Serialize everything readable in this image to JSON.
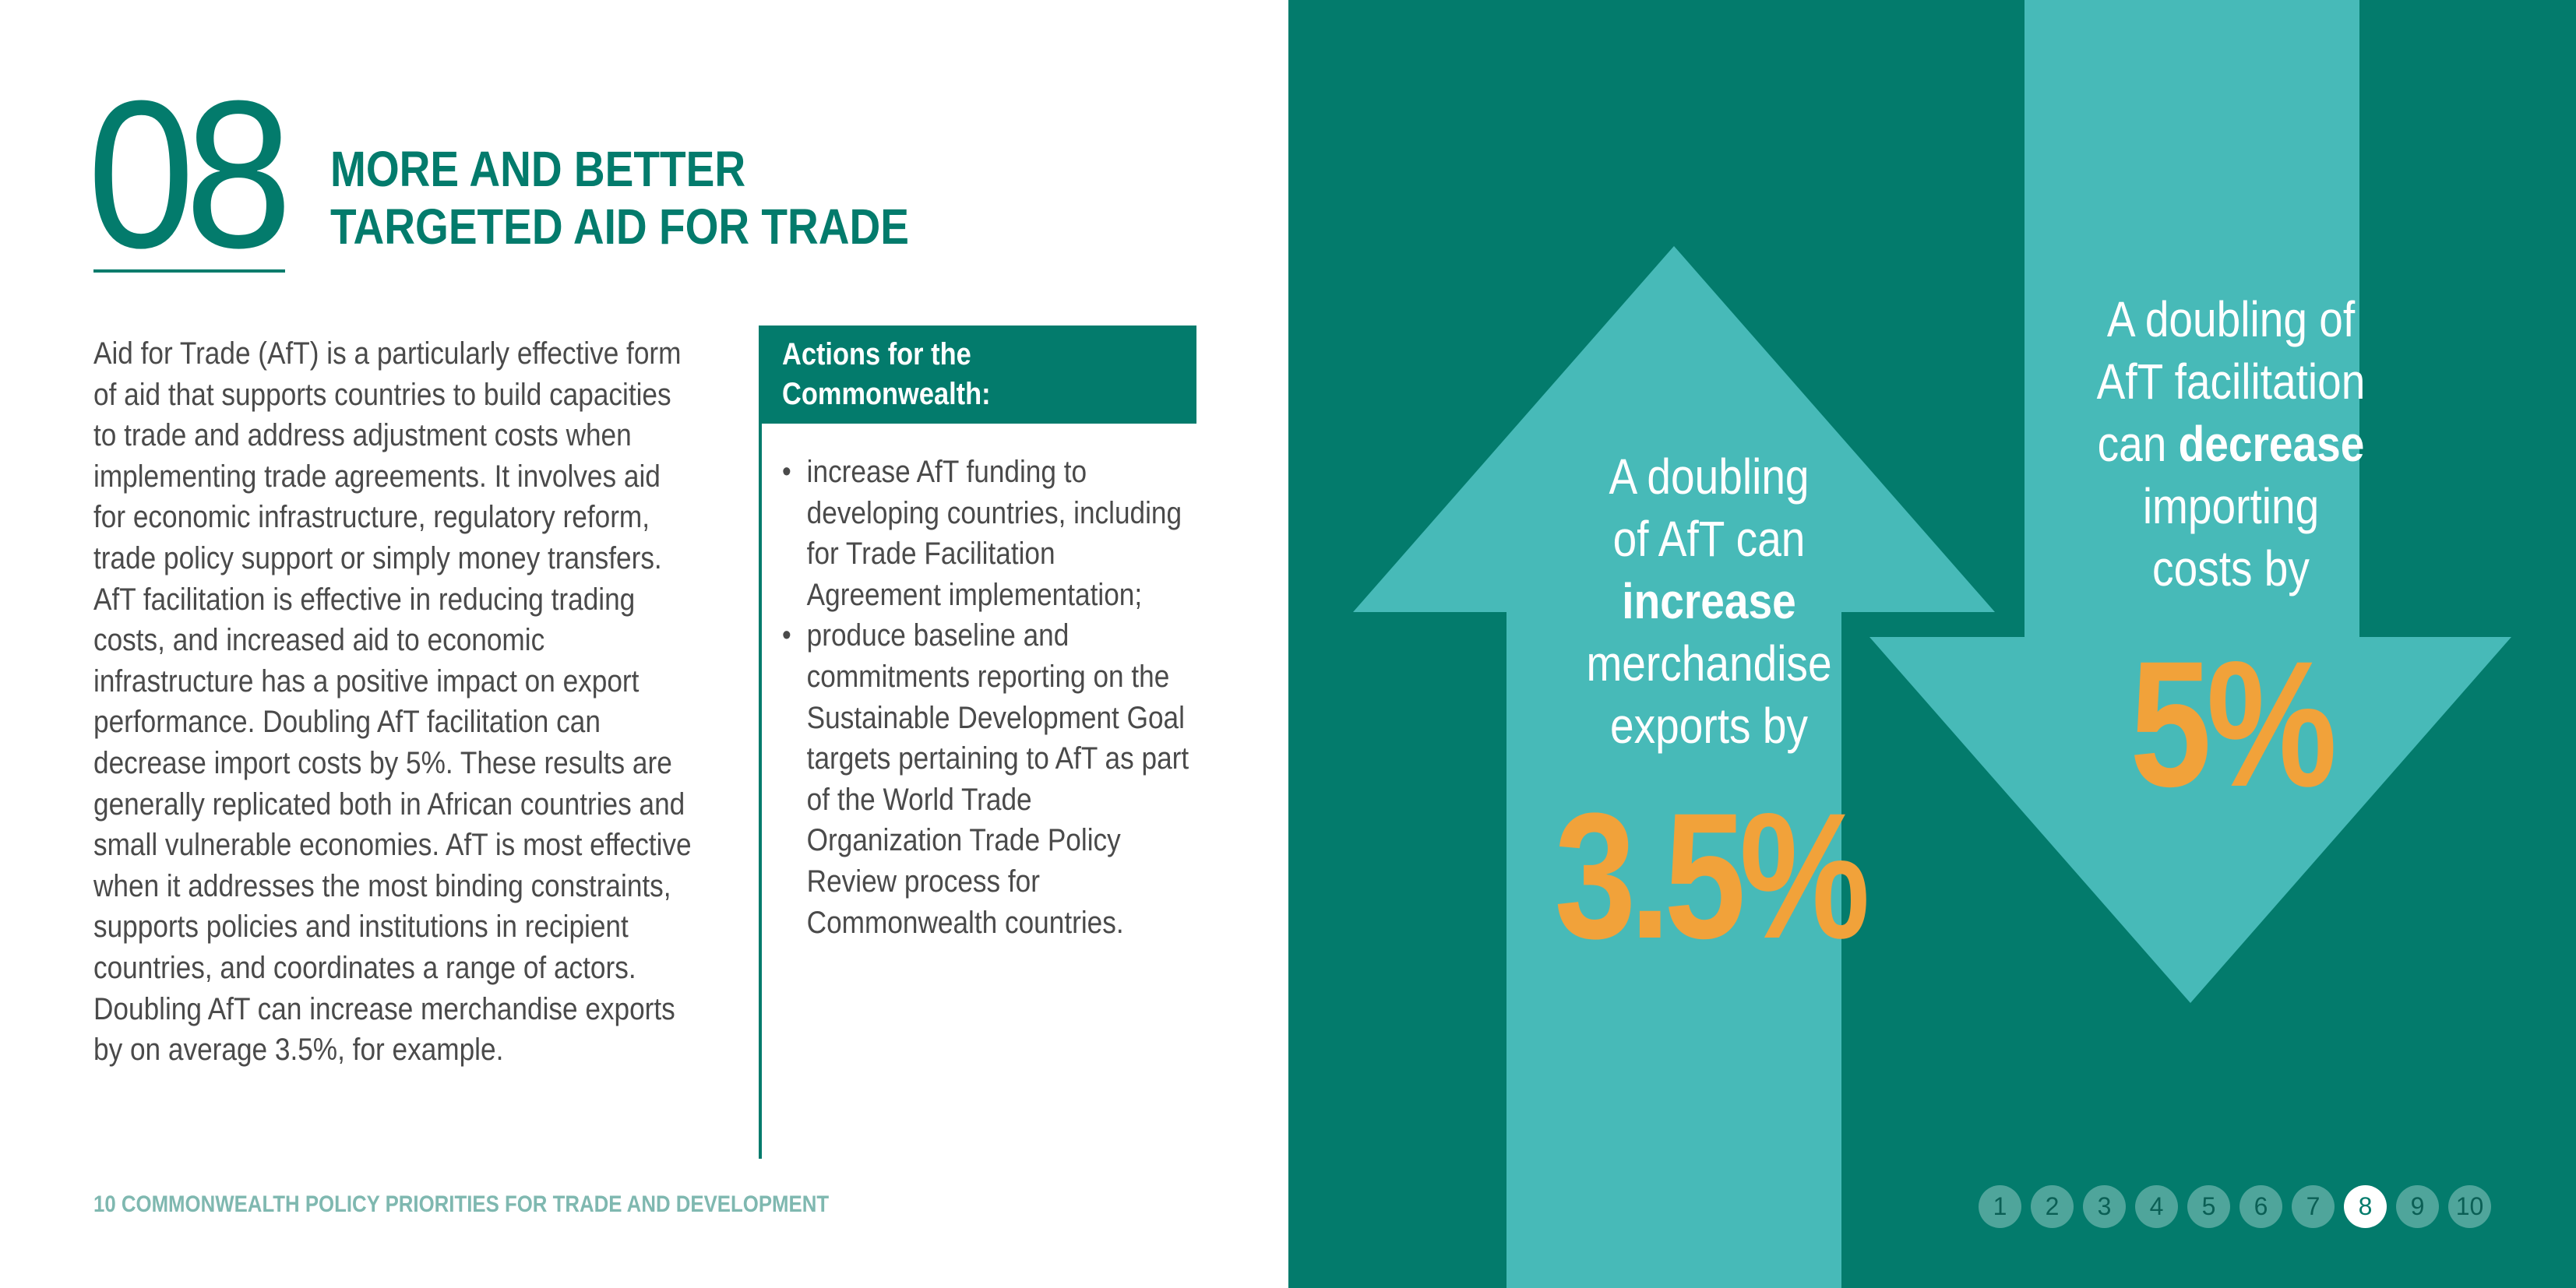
{
  "section": {
    "number": "08",
    "title": "MORE AND BETTER\nTARGETED AID FOR TRADE"
  },
  "body_text": "Aid for Trade (AfT) is a particularly effective form of aid that supports countries to build capacities to trade and address adjustment costs when implementing trade agreements. It involves aid for economic infrastructure, regulatory reform, trade policy support or simply money transfers. AfT facilitation is effective in reducing trading costs, and increased aid to economic infrastructure has a positive impact on export performance. Doubling AfT facilitation can decrease import costs by 5%. These results are generally replicated both in African countries and small vulnerable economies. AfT is most effective when it addresses the most binding constraints, supports policies and institutions in recipient countries, and coordinates a range of actors. Doubling AfT can increase merchandise exports by on average 3.5%, for example.",
  "actions": {
    "title": "Actions for the\nCommonwealth:",
    "items": [
      "increase AfT funding to developing countries, including for Trade Facilitation Agreement implementation;",
      "produce baseline and commitments reporting on the Sustainable Development Goal targets pertaining to AfT as part of the World Trade Organization Trade Policy Review process for Commonwealth countries."
    ]
  },
  "footer": "10 COMMONWEALTH POLICY PRIORITIES FOR TRADE AND DEVELOPMENT",
  "infographic": {
    "up": {
      "line1": "A doubling",
      "line2": "of AfT can",
      "emph": "increase",
      "line3": "merchandise",
      "line4": "exports by",
      "value": "3.5%"
    },
    "down": {
      "line1": "A doubling of",
      "line2": "AfT facilitation",
      "pre_emph": "can ",
      "emph": "decrease",
      "line3": "importing",
      "line4": "costs by",
      "value": "5%"
    }
  },
  "pager": {
    "pages": [
      "1",
      "2",
      "3",
      "4",
      "5",
      "6",
      "7",
      "8",
      "9",
      "10"
    ],
    "active": "8"
  },
  "colors": {
    "teal": "#037b6c",
    "light_teal": "#47bab8",
    "orange": "#f1a23a",
    "pager_inactive": "#4fa59b"
  }
}
